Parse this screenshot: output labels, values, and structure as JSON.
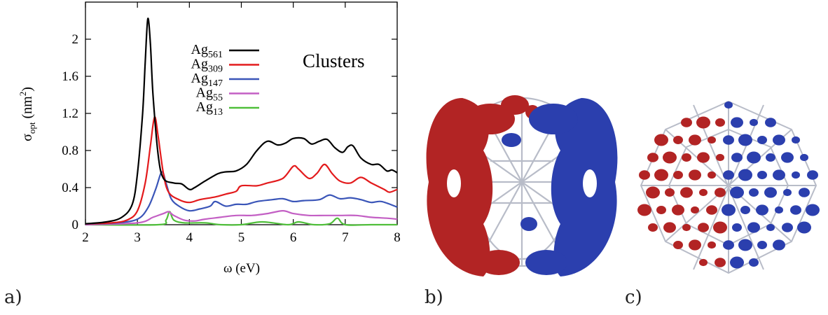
{
  "chart_data": {
    "type": "line",
    "xlabel": "ω (eV)",
    "ylabel": {
      "main": "σ",
      "sub": "opt",
      "unit_pre": " (nm",
      "unit_sup": "2",
      "unit_post": ")"
    },
    "xlim": [
      2,
      8
    ],
    "ylim": [
      0,
      2.4
    ],
    "xticks": [
      "2",
      "3",
      "4",
      "5",
      "6",
      "7",
      "8"
    ],
    "yticks": [
      "0",
      "0.4",
      "0.8",
      "1.2",
      "1.6",
      "2"
    ],
    "annotation": "Clusters",
    "legend_position": "top-right",
    "grid": false,
    "series": [
      {
        "name": "Ag",
        "sub": "561",
        "color": "#000000",
        "points": [
          [
            2,
            0.01
          ],
          [
            2.4,
            0.03
          ],
          [
            2.7,
            0.08
          ],
          [
            2.9,
            0.22
          ],
          [
            3.0,
            0.55
          ],
          [
            3.1,
            1.2
          ],
          [
            3.15,
            1.75
          ],
          [
            3.2,
            2.22
          ],
          [
            3.25,
            1.95
          ],
          [
            3.3,
            1.4
          ],
          [
            3.4,
            0.75
          ],
          [
            3.5,
            0.5
          ],
          [
            3.7,
            0.45
          ],
          [
            3.85,
            0.44
          ],
          [
            4.0,
            0.38
          ],
          [
            4.1,
            0.4
          ],
          [
            4.3,
            0.47
          ],
          [
            4.55,
            0.55
          ],
          [
            4.7,
            0.57
          ],
          [
            4.9,
            0.58
          ],
          [
            5.1,
            0.65
          ],
          [
            5.3,
            0.8
          ],
          [
            5.5,
            0.9
          ],
          [
            5.7,
            0.86
          ],
          [
            5.85,
            0.88
          ],
          [
            6.0,
            0.93
          ],
          [
            6.2,
            0.93
          ],
          [
            6.35,
            0.87
          ],
          [
            6.5,
            0.9
          ],
          [
            6.65,
            0.92
          ],
          [
            6.8,
            0.83
          ],
          [
            6.95,
            0.78
          ],
          [
            7.05,
            0.84
          ],
          [
            7.15,
            0.85
          ],
          [
            7.3,
            0.72
          ],
          [
            7.5,
            0.65
          ],
          [
            7.65,
            0.65
          ],
          [
            7.8,
            0.58
          ],
          [
            7.9,
            0.59
          ],
          [
            8.0,
            0.56
          ]
        ]
      },
      {
        "name": "Ag",
        "sub": "309",
        "color": "#e31a1c",
        "points": [
          [
            2,
            0.01
          ],
          [
            2.5,
            0.02
          ],
          [
            2.8,
            0.05
          ],
          [
            3.0,
            0.15
          ],
          [
            3.15,
            0.45
          ],
          [
            3.25,
            0.85
          ],
          [
            3.33,
            1.16
          ],
          [
            3.4,
            0.95
          ],
          [
            3.5,
            0.55
          ],
          [
            3.6,
            0.35
          ],
          [
            3.8,
            0.27
          ],
          [
            4.0,
            0.24
          ],
          [
            4.2,
            0.27
          ],
          [
            4.5,
            0.3
          ],
          [
            4.7,
            0.33
          ],
          [
            4.9,
            0.36
          ],
          [
            5.0,
            0.42
          ],
          [
            5.3,
            0.42
          ],
          [
            5.5,
            0.45
          ],
          [
            5.8,
            0.5
          ],
          [
            6.0,
            0.63
          ],
          [
            6.1,
            0.6
          ],
          [
            6.3,
            0.5
          ],
          [
            6.45,
            0.55
          ],
          [
            6.6,
            0.65
          ],
          [
            6.75,
            0.55
          ],
          [
            6.9,
            0.47
          ],
          [
            7.1,
            0.45
          ],
          [
            7.3,
            0.51
          ],
          [
            7.5,
            0.45
          ],
          [
            7.75,
            0.38
          ],
          [
            7.85,
            0.35
          ],
          [
            8.0,
            0.38
          ]
        ]
      },
      {
        "name": "Ag",
        "sub": "147",
        "color": "#3a55b8",
        "points": [
          [
            2,
            0.01
          ],
          [
            2.6,
            0.02
          ],
          [
            3.0,
            0.06
          ],
          [
            3.2,
            0.18
          ],
          [
            3.35,
            0.38
          ],
          [
            3.47,
            0.57
          ],
          [
            3.55,
            0.45
          ],
          [
            3.65,
            0.28
          ],
          [
            3.8,
            0.2
          ],
          [
            4.0,
            0.15
          ],
          [
            4.2,
            0.17
          ],
          [
            4.4,
            0.2
          ],
          [
            4.5,
            0.25
          ],
          [
            4.7,
            0.2
          ],
          [
            4.9,
            0.22
          ],
          [
            5.1,
            0.22
          ],
          [
            5.3,
            0.25
          ],
          [
            5.6,
            0.27
          ],
          [
            5.8,
            0.28
          ],
          [
            6.0,
            0.25
          ],
          [
            6.2,
            0.26
          ],
          [
            6.5,
            0.27
          ],
          [
            6.7,
            0.32
          ],
          [
            6.9,
            0.28
          ],
          [
            7.1,
            0.29
          ],
          [
            7.3,
            0.27
          ],
          [
            7.5,
            0.24
          ],
          [
            7.7,
            0.25
          ],
          [
            8.0,
            0.19
          ]
        ]
      },
      {
        "name": "Ag",
        "sub": "55",
        "color": "#c35fc4",
        "points": [
          [
            2,
            0.0
          ],
          [
            3.0,
            0.02
          ],
          [
            3.3,
            0.08
          ],
          [
            3.5,
            0.12
          ],
          [
            3.6,
            0.14
          ],
          [
            3.7,
            0.1
          ],
          [
            3.9,
            0.05
          ],
          [
            4.1,
            0.04
          ],
          [
            4.3,
            0.06
          ],
          [
            4.6,
            0.08
          ],
          [
            4.9,
            0.1
          ],
          [
            5.2,
            0.1
          ],
          [
            5.5,
            0.12
          ],
          [
            5.8,
            0.15
          ],
          [
            6.0,
            0.12
          ],
          [
            6.3,
            0.1
          ],
          [
            6.6,
            0.1
          ],
          [
            6.9,
            0.1
          ],
          [
            7.2,
            0.1
          ],
          [
            7.5,
            0.08
          ],
          [
            7.8,
            0.07
          ],
          [
            8.0,
            0.06
          ]
        ]
      },
      {
        "name": "Ag",
        "sub": "13",
        "color": "#4fbf3a",
        "points": [
          [
            2,
            0.0
          ],
          [
            3.4,
            0.0
          ],
          [
            3.55,
            0.05
          ],
          [
            3.62,
            0.14
          ],
          [
            3.7,
            0.05
          ],
          [
            3.9,
            0.02
          ],
          [
            4.3,
            0.02
          ],
          [
            4.6,
            0.0
          ],
          [
            5.0,
            0.0
          ],
          [
            5.4,
            0.03
          ],
          [
            5.9,
            0.0
          ],
          [
            6.1,
            0.03
          ],
          [
            6.4,
            0.0
          ],
          [
            6.7,
            0.01
          ],
          [
            6.85,
            0.07
          ],
          [
            7.0,
            0.0
          ],
          [
            7.5,
            0.0
          ],
          [
            8.0,
            0.0
          ]
        ]
      }
    ]
  },
  "panels": {
    "a": "a)",
    "b": "b)",
    "c": "c)"
  },
  "colors": {
    "lobe_red": "#b22424",
    "lobe_blue": "#2b3fae",
    "lattice": "#b8bcc8"
  }
}
